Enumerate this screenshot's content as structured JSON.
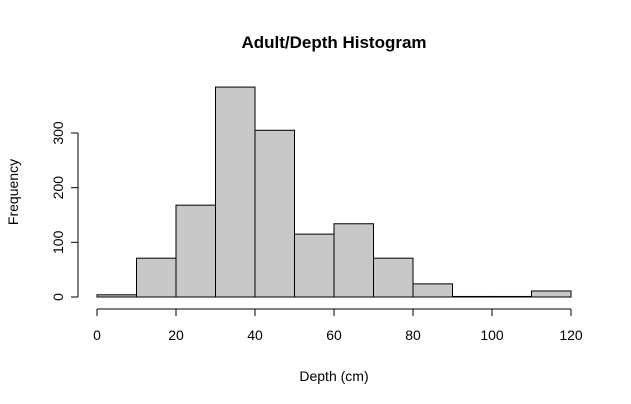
{
  "chart_data": {
    "type": "bar",
    "title": "Adult/Depth Histogram",
    "xlabel": "Depth (cm)",
    "ylabel": "Frequency",
    "bins": [
      [
        0,
        10
      ],
      [
        10,
        20
      ],
      [
        20,
        30
      ],
      [
        30,
        40
      ],
      [
        40,
        50
      ],
      [
        50,
        60
      ],
      [
        60,
        70
      ],
      [
        70,
        80
      ],
      [
        80,
        90
      ],
      [
        90,
        100
      ],
      [
        100,
        110
      ],
      [
        110,
        120
      ]
    ],
    "values": [
      4,
      71,
      168,
      384,
      305,
      115,
      134,
      71,
      24,
      1,
      1,
      11
    ],
    "xlim": [
      0,
      120
    ],
    "ylim": [
      0,
      300
    ],
    "xticks": [
      0,
      20,
      40,
      60,
      80,
      100,
      120
    ],
    "yticks": [
      0,
      100,
      200,
      300
    ],
    "grid": false,
    "colors": {
      "bar_fill": "#c8c8c8",
      "bar_stroke": "#000000"
    }
  }
}
